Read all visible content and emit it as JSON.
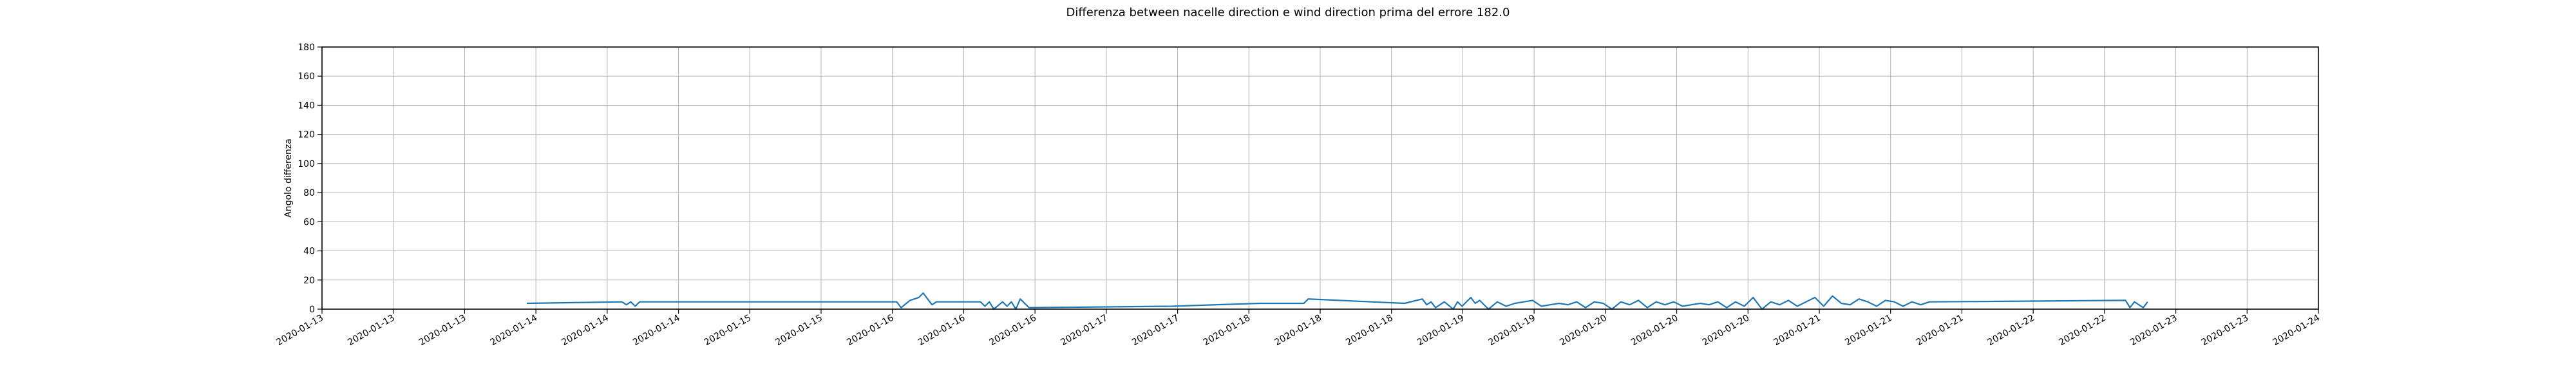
{
  "chart_data": {
    "type": "line",
    "title": "Differenza between nacelle direction e wind direction prima del errore 182.0",
    "xlabel": "",
    "ylabel": "Angolo differenza",
    "ylim": [
      0,
      180
    ],
    "xlim": [
      "2020-01-13",
      "2020-01-24"
    ],
    "yticks": [
      0,
      20,
      40,
      60,
      80,
      100,
      120,
      140,
      160,
      180
    ],
    "xtick_labels": [
      "2020-01-13",
      "2020-01-13",
      "2020-01-13",
      "2020-01-14",
      "2020-01-14",
      "2020-01-14",
      "2020-01-15",
      "2020-01-15",
      "2020-01-16",
      "2020-01-16",
      "2020-01-16",
      "2020-01-17",
      "2020-01-17",
      "2020-01-18",
      "2020-01-18",
      "2020-01-18",
      "2020-01-19",
      "2020-01-19",
      "2020-01-20",
      "2020-01-20",
      "2020-01-20",
      "2020-01-21",
      "2020-01-21",
      "2020-01-21",
      "2020-01-22",
      "2020-01-22",
      "2020-01-23",
      "2020-01-23",
      "2020-01-24"
    ],
    "grid": true,
    "legend": "none",
    "series": [
      {
        "color": "#1f77b4",
        "x": [
          "2020-01-14 03:05",
          "2020-01-14 15:40",
          "2020-01-14 16:15",
          "2020-01-14 16:50",
          "2020-01-14 17:25",
          "2020-01-14 18:00",
          "2020-01-16 04:00",
          "2020-01-16 04:35",
          "2020-01-16 05:45",
          "2020-01-16 06:55",
          "2020-01-16 07:30",
          "2020-01-16 08:40",
          "2020-01-16 09:15",
          "2020-01-16 15:05",
          "2020-01-16 15:40",
          "2020-01-16 16:15",
          "2020-01-16 16:50",
          "2020-01-16 18:00",
          "2020-01-16 18:35",
          "2020-01-16 19:10",
          "2020-01-16 19:45",
          "2020-01-16 20:20",
          "2020-01-16 21:30",
          "2020-01-17 16:20",
          "2020-01-18 04:00",
          "2020-01-18 09:50",
          "2020-01-18 10:25",
          "2020-01-18 23:10",
          "2020-01-19 01:30",
          "2020-01-19 02:05",
          "2020-01-19 02:40",
          "2020-01-19 03:15",
          "2020-01-19 04:25",
          "2020-01-19 05:35",
          "2020-01-19 06:10",
          "2020-01-19 06:45",
          "2020-01-19 07:55",
          "2020-01-19 08:30",
          "2020-01-19 09:05",
          "2020-01-19 10:15",
          "2020-01-19 11:25",
          "2020-01-19 12:35",
          "2020-01-19 13:45",
          "2020-01-19 14:55",
          "2020-01-19 16:05",
          "2020-01-19 17:15",
          "2020-01-19 18:25",
          "2020-01-19 19:35",
          "2020-01-19 20:45",
          "2020-01-19 21:55",
          "2020-01-19 23:05",
          "2020-01-20 00:15",
          "2020-01-20 01:25",
          "2020-01-20 02:35",
          "2020-01-20 03:45",
          "2020-01-20 04:55",
          "2020-01-20 06:05",
          "2020-01-20 07:15",
          "2020-01-20 08:25",
          "2020-01-20 09:35",
          "2020-01-20 10:45",
          "2020-01-20 11:55",
          "2020-01-20 13:05",
          "2020-01-20 14:15",
          "2020-01-20 15:25",
          "2020-01-20 16:35",
          "2020-01-20 17:45",
          "2020-01-20 18:55",
          "2020-01-20 20:05",
          "2020-01-20 21:15",
          "2020-01-20 22:25",
          "2020-01-20 23:35",
          "2020-01-21 00:45",
          "2020-01-21 01:55",
          "2020-01-21 03:05",
          "2020-01-21 04:15",
          "2020-01-21 05:25",
          "2020-01-21 06:35",
          "2020-01-21 07:45",
          "2020-01-21 08:55",
          "2020-01-21 10:05",
          "2020-01-21 11:15",
          "2020-01-21 12:25",
          "2020-01-21 13:35",
          "2020-01-21 14:45",
          "2020-01-21 15:55",
          "2020-01-21 17:05",
          "2020-01-21 18:15",
          "2020-01-21 19:25",
          "2020-01-21 20:35",
          "2020-01-22 22:30",
          "2020-01-22 23:05",
          "2020-01-22 23:40",
          "2020-01-23 00:50",
          "2020-01-23 01:25"
        ],
        "y": [
          4,
          5,
          3,
          5,
          2,
          5,
          5,
          1,
          6,
          8,
          11,
          3,
          5,
          5,
          2,
          5,
          0,
          5,
          2,
          5,
          0,
          7,
          1,
          2,
          4,
          4,
          7,
          4,
          7,
          3,
          5,
          1,
          5,
          0,
          5,
          2,
          8,
          4,
          6,
          0,
          5,
          2,
          4,
          5,
          6,
          2,
          3,
          4,
          3,
          5,
          1,
          5,
          4,
          0,
          5,
          3,
          6,
          1,
          5,
          3,
          5,
          2,
          3,
          4,
          3,
          5,
          1,
          5,
          2,
          8,
          0,
          5,
          3,
          6,
          2,
          5,
          8,
          2,
          9,
          4,
          3,
          7,
          5,
          2,
          6,
          5,
          2,
          5,
          3,
          5,
          6,
          1,
          5,
          1,
          5
        ]
      }
    ]
  }
}
